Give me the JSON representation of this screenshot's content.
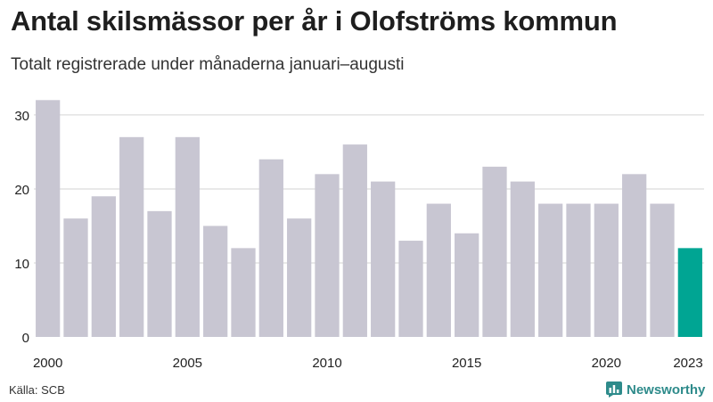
{
  "colors": {
    "bar": "#c8c6d2",
    "highlight": "#00a593",
    "grid": "#e2e2e2",
    "brand": "#2e8b8b"
  },
  "footer": {
    "source": "Källa: SCB",
    "brand": "Newsworthy"
  },
  "chart_data": {
    "type": "bar",
    "title": "Antal skilsmässor per år i Olofströms kommun",
    "subtitle": "Totalt registrerade under månaderna januari–augusti",
    "xlabel": "",
    "ylabel": "",
    "categories": [
      "2000",
      "2001",
      "2002",
      "2003",
      "2004",
      "2005",
      "2006",
      "2007",
      "2008",
      "2009",
      "2010",
      "2011",
      "2012",
      "2013",
      "2014",
      "2015",
      "2016",
      "2017",
      "2018",
      "2019",
      "2020",
      "2021",
      "2022",
      "2023"
    ],
    "values": [
      32,
      16,
      19,
      27,
      17,
      27,
      15,
      12,
      24,
      16,
      22,
      26,
      21,
      13,
      18,
      14,
      23,
      21,
      18,
      18,
      18,
      22,
      18,
      12
    ],
    "highlight_index": 23,
    "ylim": [
      0,
      33
    ],
    "yticks": [
      0,
      10,
      20,
      30
    ],
    "xtick_labels": [
      "2000",
      "2005",
      "2010",
      "2015",
      "2020",
      "2023"
    ],
    "grid": true
  }
}
